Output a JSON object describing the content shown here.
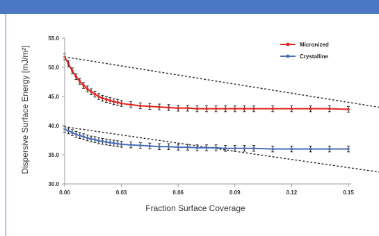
{
  "chart_data": {
    "type": "line",
    "title": "",
    "xlabel": "Fraction Surface Coverage",
    "ylabel": "Dispersive Surface Energy [mJ/m²]",
    "xlim": [
      0.0,
      0.15
    ],
    "ylim": [
      30.0,
      55.0
    ],
    "x_ticks": [
      "0.00",
      "0.03",
      "0.06",
      "0.09",
      "0.12",
      "0.15"
    ],
    "y_ticks": [
      "30.0",
      "35.0",
      "40.0",
      "45.0",
      "50.0",
      "55.0"
    ],
    "legend_position": "top-right",
    "grid": false,
    "series": [
      {
        "name": "Micronized",
        "color": "#e2231a",
        "error": 0.5,
        "points": [
          [
            0.0,
            51.8
          ],
          [
            0.002,
            50.6
          ],
          [
            0.004,
            49.4
          ],
          [
            0.006,
            48.4
          ],
          [
            0.008,
            47.6
          ],
          [
            0.01,
            46.9
          ],
          [
            0.012,
            46.3
          ],
          [
            0.014,
            45.8
          ],
          [
            0.016,
            45.4
          ],
          [
            0.018,
            45.0
          ],
          [
            0.02,
            44.7
          ],
          [
            0.022,
            44.5
          ],
          [
            0.024,
            44.3
          ],
          [
            0.026,
            44.1
          ],
          [
            0.028,
            44.0
          ],
          [
            0.03,
            43.8
          ],
          [
            0.035,
            43.6
          ],
          [
            0.04,
            43.4
          ],
          [
            0.045,
            43.3
          ],
          [
            0.05,
            43.2
          ],
          [
            0.055,
            43.1
          ],
          [
            0.06,
            43.0
          ],
          [
            0.065,
            43.0
          ],
          [
            0.07,
            42.9
          ],
          [
            0.075,
            42.9
          ],
          [
            0.08,
            42.9
          ],
          [
            0.085,
            42.9
          ],
          [
            0.09,
            42.9
          ],
          [
            0.095,
            42.9
          ],
          [
            0.1,
            42.9
          ],
          [
            0.11,
            42.9
          ],
          [
            0.12,
            42.9
          ],
          [
            0.13,
            42.9
          ],
          [
            0.14,
            42.9
          ],
          [
            0.15,
            42.8
          ]
        ]
      },
      {
        "name": "Crystalline",
        "color": "#4a6fb5",
        "error": 0.5,
        "points": [
          [
            0.0,
            39.4
          ],
          [
            0.002,
            39.1
          ],
          [
            0.004,
            38.8
          ],
          [
            0.006,
            38.5
          ],
          [
            0.008,
            38.3
          ],
          [
            0.01,
            38.1
          ],
          [
            0.012,
            37.9
          ],
          [
            0.014,
            37.7
          ],
          [
            0.016,
            37.6
          ],
          [
            0.018,
            37.4
          ],
          [
            0.02,
            37.3
          ],
          [
            0.022,
            37.2
          ],
          [
            0.024,
            37.1
          ],
          [
            0.026,
            37.0
          ],
          [
            0.028,
            36.9
          ],
          [
            0.03,
            36.8
          ],
          [
            0.035,
            36.7
          ],
          [
            0.04,
            36.6
          ],
          [
            0.045,
            36.5
          ],
          [
            0.05,
            36.4
          ],
          [
            0.055,
            36.4
          ],
          [
            0.06,
            36.3
          ],
          [
            0.065,
            36.3
          ],
          [
            0.07,
            36.2
          ],
          [
            0.075,
            36.2
          ],
          [
            0.08,
            36.2
          ],
          [
            0.085,
            36.1
          ],
          [
            0.09,
            36.1
          ],
          [
            0.095,
            36.1
          ],
          [
            0.1,
            36.1
          ],
          [
            0.11,
            36.0
          ],
          [
            0.12,
            36.0
          ],
          [
            0.13,
            36.0
          ],
          [
            0.14,
            36.0
          ],
          [
            0.15,
            36.0
          ]
        ]
      }
    ],
    "trend_lines": [
      {
        "name": "micronized-trend",
        "color": "#333333",
        "from": [
          0.0,
          51.8
        ],
        "to": [
          0.15,
          44.0
        ]
      },
      {
        "name": "crystalline-trend",
        "color": "#333333",
        "from": [
          0.0,
          39.8
        ],
        "to": [
          0.15,
          32.8
        ]
      }
    ]
  }
}
